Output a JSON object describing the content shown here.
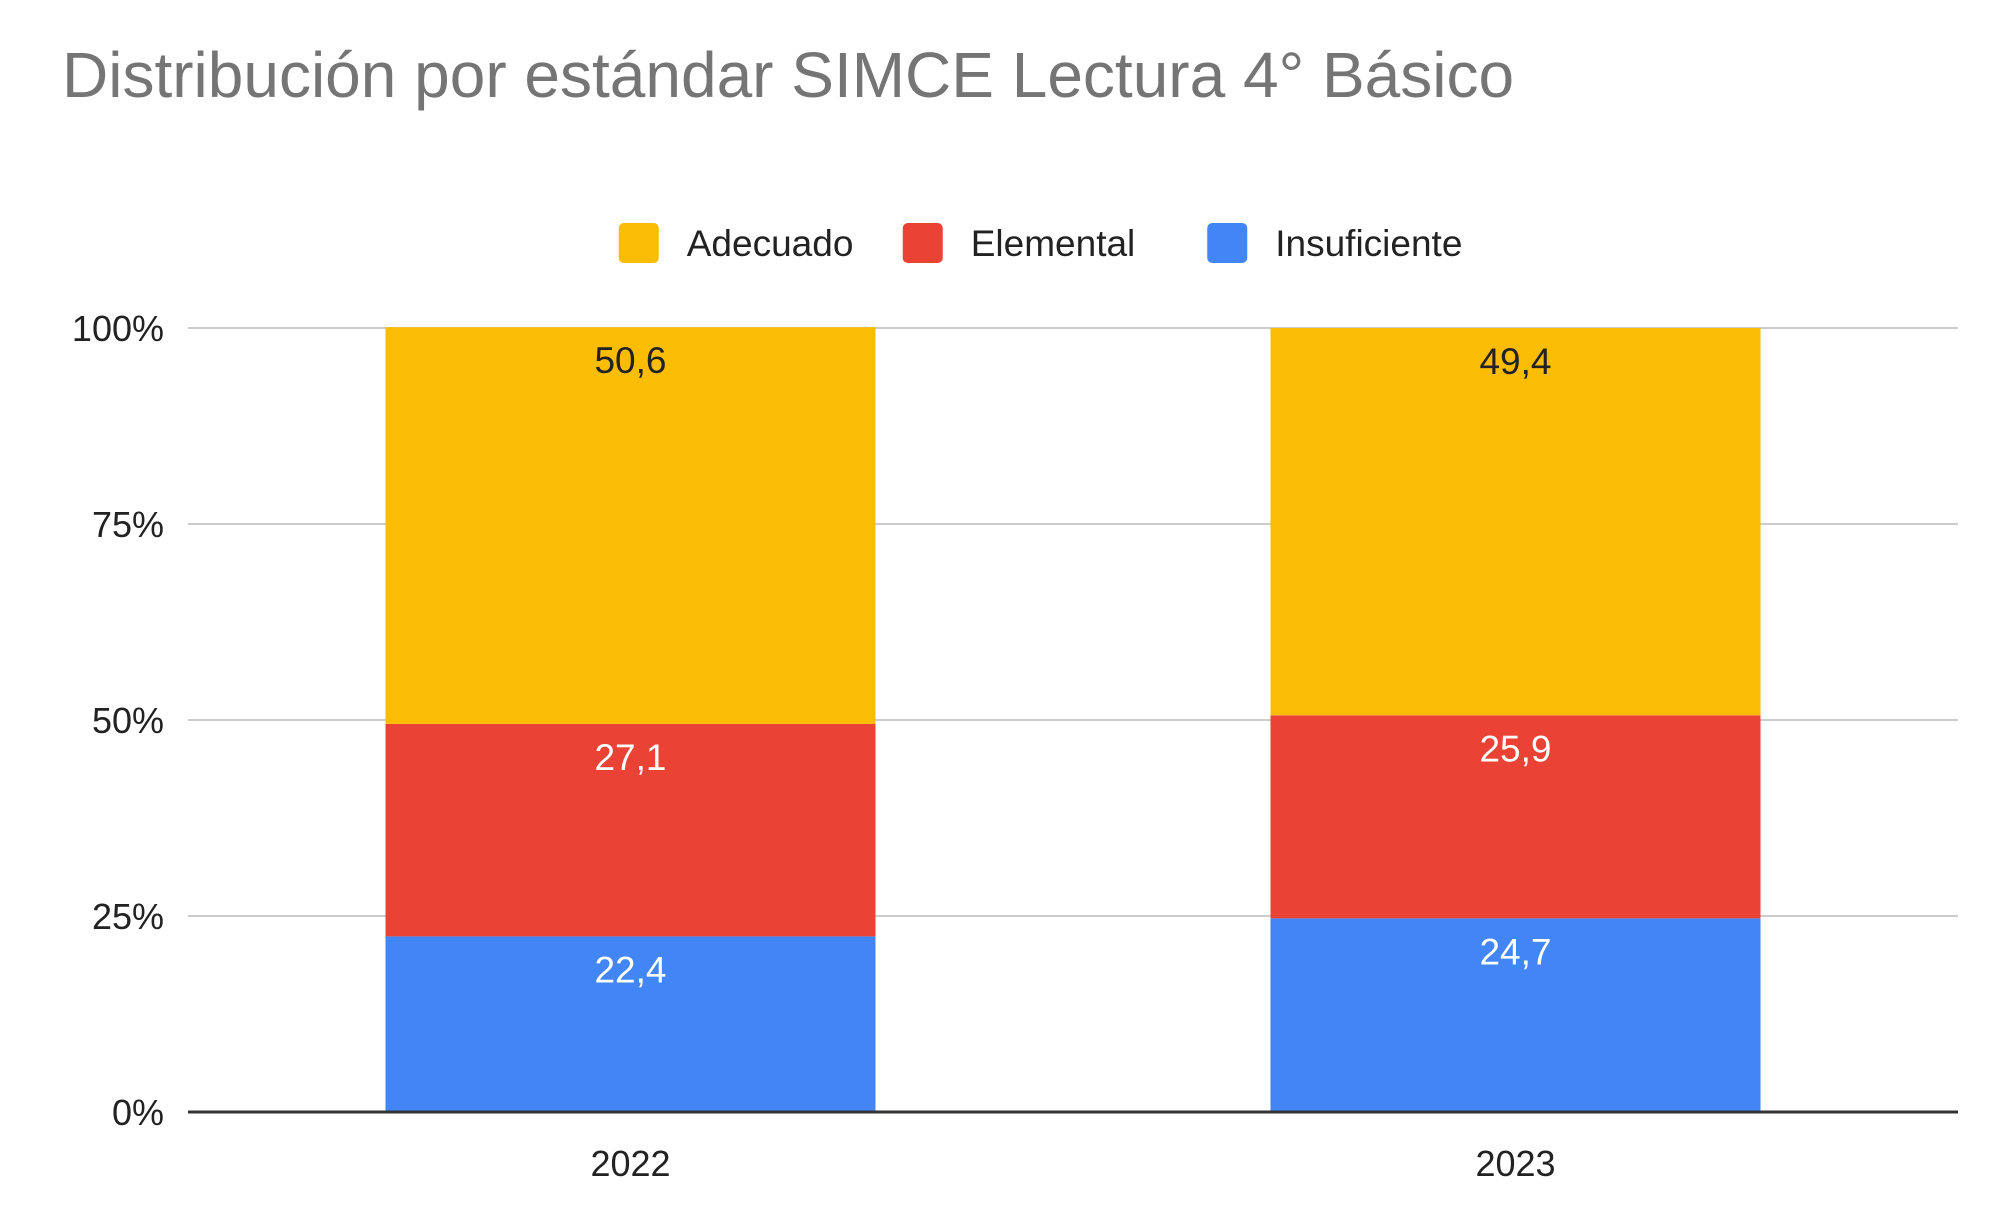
{
  "chart_data": {
    "type": "bar",
    "stacked": true,
    "title": "Distribución por estándar SIMCE Lectura 4° Básico",
    "xlabel": "",
    "ylabel": "",
    "categories": [
      "2022",
      "2023"
    ],
    "series": [
      {
        "name": "Insuficiente",
        "values": [
          22.4,
          24.7
        ],
        "labels": [
          "22,4",
          "24,7"
        ],
        "color": "#4285f4",
        "label_color": "#ffffff"
      },
      {
        "name": "Elemental",
        "values": [
          27.1,
          25.9
        ],
        "labels": [
          "27,1",
          "25,9"
        ],
        "color": "#ea4335",
        "label_color": "#ffffff"
      },
      {
        "name": "Adecuado",
        "values": [
          50.6,
          49.4
        ],
        "labels": [
          "50,6",
          "49,4"
        ],
        "color": "#fbbc04",
        "label_color": "#222222"
      }
    ],
    "legend_order": [
      "Adecuado",
      "Elemental",
      "Insuficiente"
    ],
    "ylim": [
      0,
      100
    ],
    "yticks": [
      0,
      25,
      50,
      75,
      100
    ],
    "ytick_labels": [
      "0%",
      "25%",
      "50%",
      "75%",
      "100%"
    ],
    "grid": true,
    "legend_position": "top-center",
    "gridline_color": "#cccccc",
    "axis_color": "#333333"
  }
}
